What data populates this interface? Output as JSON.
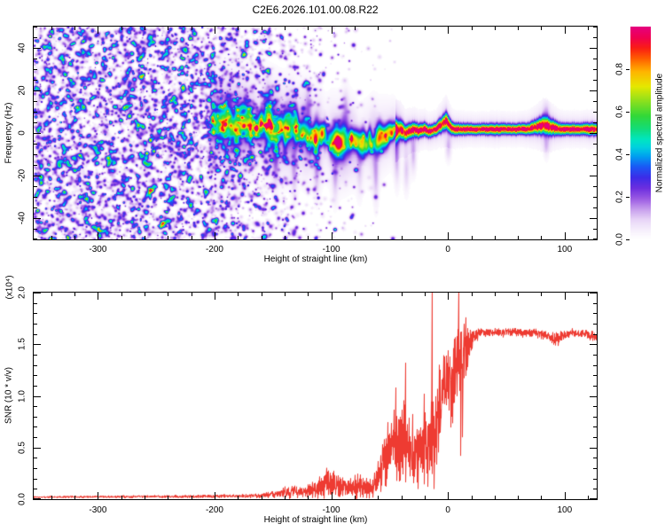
{
  "title": "C2E6.2026.101.00.08.R22",
  "chart_data": [
    {
      "type": "heatmap",
      "name": "doppler-spectrogram",
      "xlabel": "Height of straight line (km)",
      "ylabel": "Frequency (Hz)",
      "xlim": [
        -355,
        127.5
      ],
      "ylim": [
        -50,
        50
      ],
      "xticks": [
        -300,
        -200,
        -100,
        0,
        100
      ],
      "yticks": [
        -40,
        -20,
        0,
        20,
        40
      ],
      "x_minor_step": 20,
      "y_minor_step": 5,
      "grid": false,
      "colorbar": {
        "label": "Normalized spectral amplitude",
        "ticks": [
          "0.0",
          "0.2",
          "0.4",
          "0.6",
          "0.8"
        ],
        "tick_values": [
          0,
          0.2,
          0.4,
          0.6,
          0.8
        ],
        "range": [
          0,
          1
        ],
        "colormap_stops": [
          [
            0.0,
            "#ffffff"
          ],
          [
            0.04,
            "#f7f0fc"
          ],
          [
            0.09,
            "#e8d6f7"
          ],
          [
            0.14,
            "#c79eed"
          ],
          [
            0.19,
            "#9a5ae3"
          ],
          [
            0.24,
            "#6c2edf"
          ],
          [
            0.29,
            "#3c2ce8"
          ],
          [
            0.34,
            "#1b58f5"
          ],
          [
            0.39,
            "#00a0f0"
          ],
          [
            0.43,
            "#00cfe0"
          ],
          [
            0.47,
            "#00e6c0"
          ],
          [
            0.52,
            "#12dc78"
          ],
          [
            0.58,
            "#32d838"
          ],
          [
            0.65,
            "#8ce01e"
          ],
          [
            0.72,
            "#e6e800"
          ],
          [
            0.79,
            "#ffb400"
          ],
          [
            0.85,
            "#ff6000"
          ],
          [
            0.9,
            "#fa1e14"
          ],
          [
            0.95,
            "#f00050"
          ],
          [
            1.0,
            "#e6007e"
          ]
        ]
      },
      "noise_field": {
        "extent_km": [
          -355,
          -40
        ],
        "density_profile": [
          [
            -355,
            0.95
          ],
          [
            -230,
            0.95
          ],
          [
            -200,
            0.72
          ],
          [
            -150,
            0.42
          ],
          [
            -110,
            0.18
          ],
          [
            -70,
            0.05
          ],
          [
            -40,
            0.0
          ]
        ],
        "amplitude_range": [
          0.05,
          0.31
        ]
      },
      "bright_spots": [
        [
          -335,
          12,
          0.45
        ]
      ],
      "band_smooth_from_km": -45,
      "fringe_amp": 0.11,
      "band_track": [
        [
          -202,
          4,
          0.26,
          5.5
        ],
        [
          -193,
          6,
          0.34,
          5.5
        ],
        [
          -184,
          4,
          0.4,
          5.5
        ],
        [
          -175,
          5,
          0.44,
          5
        ],
        [
          -166,
          3,
          0.48,
          5
        ],
        [
          -157,
          5,
          0.47,
          5
        ],
        [
          -149,
          2,
          0.5,
          5
        ],
        [
          -141,
          1,
          0.49,
          5
        ],
        [
          -133,
          3,
          0.53,
          5
        ],
        [
          -125,
          1,
          0.5,
          4.8
        ],
        [
          -117,
          -1,
          0.52,
          4.8
        ],
        [
          -109,
          -2,
          0.54,
          4.6
        ],
        [
          -101,
          -3,
          0.58,
          4.6
        ],
        [
          -93,
          -5,
          0.55,
          4.4
        ],
        [
          -85,
          -3,
          0.57,
          4.4
        ],
        [
          -77,
          -5,
          0.6,
          4.2
        ],
        [
          -69,
          -4,
          0.6,
          4.2
        ],
        [
          -61,
          -3,
          0.62,
          4
        ],
        [
          -55,
          -1,
          0.64,
          3.8
        ],
        [
          -49,
          0,
          0.7,
          3.4
        ],
        [
          -45,
          1,
          0.78,
          3
        ],
        [
          -41,
          2,
          0.84,
          2.6
        ],
        [
          -37,
          0,
          0.9,
          2.2
        ],
        [
          -33,
          1,
          0.93,
          2
        ],
        [
          -29,
          2,
          0.95,
          1.9
        ],
        [
          -25,
          1,
          0.95,
          1.8
        ],
        [
          -21,
          2,
          0.96,
          1.7
        ],
        [
          -16,
          1,
          0.96,
          1.6
        ],
        [
          -11,
          2,
          0.97,
          1.6
        ],
        [
          -6,
          4,
          0.95,
          2
        ],
        [
          -2,
          6,
          0.92,
          2.4
        ],
        [
          1,
          4,
          0.94,
          2
        ],
        [
          4,
          2,
          0.96,
          1.6
        ],
        [
          10,
          2,
          0.97,
          1.5
        ],
        [
          20,
          2,
          0.97,
          1.4
        ],
        [
          30,
          2,
          0.97,
          1.4
        ],
        [
          40,
          2,
          0.96,
          1.5
        ],
        [
          50,
          2,
          0.97,
          1.4
        ],
        [
          60,
          2,
          0.97,
          1.4
        ],
        [
          68,
          2,
          0.96,
          1.5
        ],
        [
          75,
          3,
          0.95,
          1.9
        ],
        [
          82,
          4,
          0.93,
          2.5
        ],
        [
          88,
          3,
          0.94,
          2.2
        ],
        [
          94,
          2,
          0.96,
          1.7
        ],
        [
          100,
          2,
          0.97,
          1.5
        ],
        [
          107,
          2,
          0.96,
          1.5
        ],
        [
          114,
          2,
          0.97,
          1.5
        ],
        [
          120,
          2,
          0.96,
          1.6
        ],
        [
          127,
          2,
          0.95,
          1.6
        ]
      ],
      "streaks": [
        [
          -155,
          14,
          6,
          0.1
        ],
        [
          -148,
          -13,
          8,
          0.11
        ],
        [
          -132,
          -18,
          9,
          0.1
        ],
        [
          -120,
          13,
          6,
          0.09
        ],
        [
          -113,
          -15,
          10,
          0.11
        ],
        [
          -97,
          -19,
          9,
          0.1
        ],
        [
          -88,
          12,
          6,
          0.08
        ],
        [
          -76,
          -14,
          10,
          0.1
        ],
        [
          -62,
          -21,
          9,
          0.1
        ],
        [
          -44,
          -13,
          8,
          0.11
        ],
        [
          -36,
          -17,
          7,
          0.1
        ],
        [
          -30,
          -10,
          6,
          0.12
        ],
        [
          0,
          -7,
          4,
          0.1
        ],
        [
          84,
          -6,
          4,
          0.08
        ],
        [
          84,
          9,
          4,
          0.08
        ]
      ]
    },
    {
      "type": "line",
      "name": "snr-profile",
      "xlabel": "Height of straight line (km)",
      "ylabel": "SNR (10 * v/v)",
      "y_multiplier": "(x10⁴)",
      "xlim": [
        -355,
        127.5
      ],
      "ylim": [
        0,
        2.0
      ],
      "xticks": [
        -300,
        -200,
        -100,
        0,
        100
      ],
      "yticks": [
        "0.0",
        "0.5",
        "1.0",
        "1.5",
        "2.0"
      ],
      "ytick_values": [
        0,
        0.5,
        1.0,
        1.5,
        2.0
      ],
      "x_minor_step": 20,
      "y_minor_step": 0.1,
      "line_color": "#ee3b32",
      "envelope": [
        [
          -355,
          0.02,
          0.012
        ],
        [
          -320,
          0.022,
          0.013
        ],
        [
          -290,
          0.022,
          0.014
        ],
        [
          -260,
          0.025,
          0.015
        ],
        [
          -230,
          0.026,
          0.016
        ],
        [
          -205,
          0.028,
          0.018
        ],
        [
          -185,
          0.03,
          0.02
        ],
        [
          -168,
          0.033,
          0.025
        ],
        [
          -156,
          0.038,
          0.035
        ],
        [
          -147,
          0.05,
          0.05
        ],
        [
          -139,
          0.065,
          0.07
        ],
        [
          -131,
          0.08,
          0.08
        ],
        [
          -124,
          0.07,
          0.06
        ],
        [
          -117,
          0.085,
          0.09
        ],
        [
          -110,
          0.12,
          0.14
        ],
        [
          -104,
          0.16,
          0.19
        ],
        [
          -98,
          0.14,
          0.16
        ],
        [
          -92,
          0.12,
          0.12
        ],
        [
          -86,
          0.1,
          0.1
        ],
        [
          -80,
          0.13,
          0.17
        ],
        [
          -74,
          0.11,
          0.12
        ],
        [
          -68,
          0.12,
          0.15
        ],
        [
          -62,
          0.16,
          0.18
        ],
        [
          -56,
          0.3,
          0.28
        ],
        [
          -51,
          0.48,
          0.38
        ],
        [
          -47,
          0.55,
          0.42
        ],
        [
          -43,
          0.5,
          0.42
        ],
        [
          -39,
          0.55,
          0.44
        ],
        [
          -35,
          0.5,
          0.4
        ],
        [
          -31,
          0.46,
          0.38
        ],
        [
          -27,
          0.5,
          0.42
        ],
        [
          -23,
          0.52,
          0.46
        ],
        [
          -19,
          0.5,
          0.48
        ],
        [
          -16,
          0.55,
          0.5
        ],
        [
          -13,
          0.5,
          0.42
        ],
        [
          -10,
          0.7,
          0.5
        ],
        [
          -7,
          0.95,
          0.5
        ],
        [
          -4,
          1.08,
          0.45
        ],
        [
          -1,
          1.15,
          0.42
        ],
        [
          2,
          1.1,
          0.48
        ],
        [
          5,
          1.18,
          0.52
        ],
        [
          8,
          1.22,
          0.55
        ],
        [
          11,
          1.28,
          0.5
        ],
        [
          14,
          1.38,
          0.35
        ],
        [
          17,
          1.48,
          0.22
        ],
        [
          20,
          1.54,
          0.13
        ],
        [
          23,
          1.58,
          0.08
        ],
        [
          27,
          1.61,
          0.055
        ],
        [
          35,
          1.62,
          0.05
        ],
        [
          45,
          1.61,
          0.05
        ],
        [
          55,
          1.62,
          0.05
        ],
        [
          65,
          1.61,
          0.05
        ],
        [
          75,
          1.61,
          0.05
        ],
        [
          83,
          1.59,
          0.06
        ],
        [
          89,
          1.56,
          0.07
        ],
        [
          94,
          1.54,
          0.08
        ],
        [
          99,
          1.59,
          0.055
        ],
        [
          106,
          1.61,
          0.05
        ],
        [
          112,
          1.59,
          0.055
        ],
        [
          118,
          1.61,
          0.05
        ],
        [
          123,
          1.58,
          0.06
        ],
        [
          127,
          1.56,
          0.05
        ]
      ],
      "spikes": [
        [
          -14,
          2.1
        ],
        [
          -37,
          1.32
        ],
        [
          -45,
          1.08
        ],
        [
          -21,
          1.02
        ],
        [
          9,
          2.06
        ],
        [
          15,
          1.76
        ],
        [
          0,
          1.44
        ],
        [
          -7.5,
          1.3
        ],
        [
          5,
          1.55
        ]
      ],
      "dips": [
        [
          -12.5,
          0.1
        ],
        [
          -18,
          0.12
        ],
        [
          10.5,
          0.42
        ],
        [
          12,
          0.6
        ],
        [
          -26,
          0.1
        ]
      ]
    }
  ]
}
